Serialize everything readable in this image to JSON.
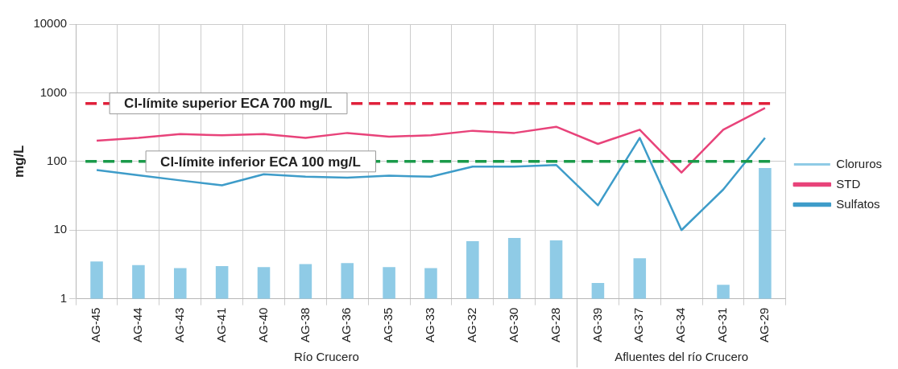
{
  "chart_data": {
    "type": "bar",
    "ylabel": "mg/L",
    "categories": [
      "AG-45",
      "AG-44",
      "AG-43",
      "AG-41",
      "AG-40",
      "AG-38",
      "AG-36",
      "AG-35",
      "AG-33",
      "AG-32",
      "AG-30",
      "AG-28",
      "AG-39",
      "AG-37",
      "AG-34",
      "AG-31",
      "AG-29"
    ],
    "series": [
      {
        "name": "Cloruros",
        "color": "#8fcbe6",
        "values": [
          3.5,
          3.1,
          2.8,
          3.0,
          2.9,
          3.2,
          3.3,
          2.9,
          2.8,
          6.9,
          7.7,
          7.1,
          1.7,
          3.9,
          null,
          1.6,
          80
        ]
      },
      {
        "name": "STD",
        "type": "line",
        "color": "#e8437a",
        "values": [
          200,
          220,
          250,
          240,
          250,
          220,
          260,
          230,
          240,
          280,
          260,
          320,
          180,
          290,
          69,
          290,
          600
        ]
      },
      {
        "name": "Sulfatos",
        "type": "line",
        "color": "#3e9cc9",
        "values": [
          75,
          63,
          53,
          45,
          65,
          60,
          58,
          62,
          60,
          84,
          84,
          89,
          23,
          220,
          10,
          39,
          220
        ]
      }
    ],
    "log": "y",
    "ylim": [
      1,
      10000
    ],
    "yticks": [
      1,
      10,
      100,
      1000,
      10000
    ],
    "grid": true,
    "legend": "right",
    "ref_lines": [
      {
        "axis": "y",
        "value": 700,
        "label": "Cl-límite superior ECA 700 mg/L",
        "color": "#e0203a",
        "line_style": "dashed"
      },
      {
        "axis": "y",
        "value": 100,
        "label": "Cl-límite inferior ECA 100 mg/L",
        "color": "#1a9a4a",
        "line_style": "dashed"
      }
    ],
    "annotations": [
      "Río Crucero",
      "Afluentes del río Crucero"
    ]
  }
}
